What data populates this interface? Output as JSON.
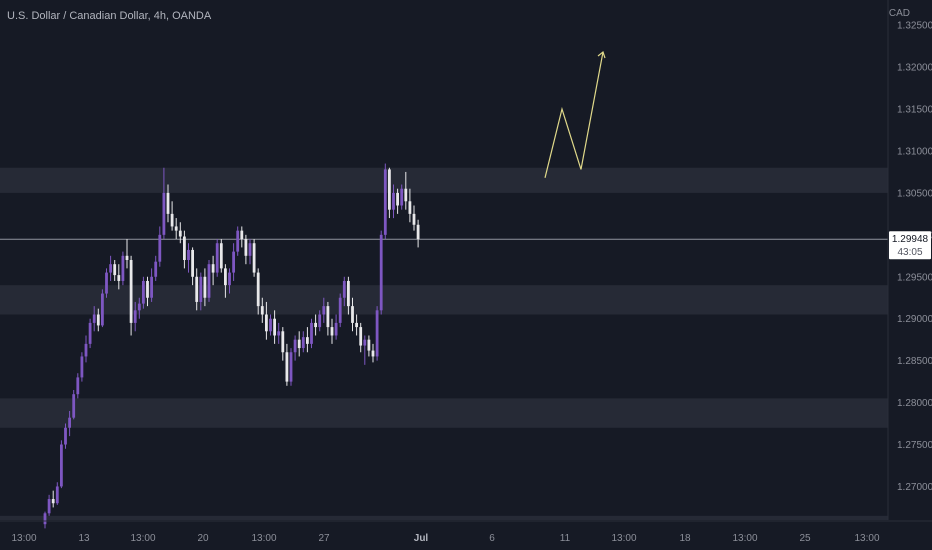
{
  "header": {
    "title": "U.S. Dollar / Canadian Dollar, 4h, OANDA",
    "currency": "CAD"
  },
  "price_label": {
    "price": "1.29948",
    "countdown": "43:05"
  },
  "colors": {
    "background": "#161a25",
    "bull": "#7e57c2",
    "bear": "#e8e8ea",
    "zone": "#262a36",
    "projection": "#e0d98a",
    "price_line": "#b0b3bd"
  },
  "chart_data": {
    "type": "candlestick",
    "title": "U.S. Dollar / Canadian Dollar, 4h, OANDA",
    "ylabel": "CAD",
    "ylim": [
      1.266,
      1.328
    ],
    "yticks": [
      "1.32500",
      "1.32000",
      "1.31500",
      "1.31000",
      "1.30500",
      "1.30000",
      "1.29500",
      "1.29000",
      "1.28500",
      "1.28000",
      "1.27500",
      "1.27000"
    ],
    "xtick_labels": [
      {
        "label": "13:00",
        "bold": false
      },
      {
        "label": "13",
        "bold": false
      },
      {
        "label": "13:00",
        "bold": false
      },
      {
        "label": "20",
        "bold": false
      },
      {
        "label": "13:00",
        "bold": false
      },
      {
        "label": "27",
        "bold": false
      },
      {
        "label": "Jul",
        "bold": true
      },
      {
        "label": "6",
        "bold": false
      },
      {
        "label": "11",
        "bold": false
      },
      {
        "label": "13:00",
        "bold": false
      },
      {
        "label": "18",
        "bold": false
      },
      {
        "label": "13:00",
        "bold": false
      },
      {
        "label": "25",
        "bold": false
      },
      {
        "label": "13:00",
        "bold": false
      }
    ],
    "current_price": 1.29948,
    "zones": [
      {
        "from": 1.305,
        "to": 1.308
      },
      {
        "from": 1.2905,
        "to": 1.294
      },
      {
        "from": 1.277,
        "to": 1.2805
      },
      {
        "from": 1.266,
        "to": 1.2665
      }
    ],
    "projection": [
      1.3068,
      1.315,
      1.3078,
      1.3218
    ],
    "candles": [
      [
        1.2655,
        1.267,
        1.265,
        1.2668
      ],
      [
        1.2668,
        1.269,
        1.2665,
        1.2685
      ],
      [
        1.2685,
        1.2695,
        1.2675,
        1.268
      ],
      [
        1.268,
        1.2705,
        1.2678,
        1.27
      ],
      [
        1.27,
        1.2755,
        1.2698,
        1.275
      ],
      [
        1.275,
        1.2775,
        1.2745,
        1.277
      ],
      [
        1.277,
        1.279,
        1.276,
        1.2782
      ],
      [
        1.2782,
        1.2815,
        1.278,
        1.281
      ],
      [
        1.281,
        1.2835,
        1.2805,
        1.283
      ],
      [
        1.283,
        1.286,
        1.2825,
        1.2855
      ],
      [
        1.2855,
        1.288,
        1.2848,
        1.287
      ],
      [
        1.287,
        1.29,
        1.2865,
        1.2895
      ],
      [
        1.2895,
        1.2915,
        1.2885,
        1.2905
      ],
      [
        1.2905,
        1.2912,
        1.2885,
        1.2892
      ],
      [
        1.2892,
        1.2935,
        1.289,
        1.293
      ],
      [
        1.293,
        1.296,
        1.2925,
        1.2955
      ],
      [
        1.2955,
        1.2975,
        1.2945,
        1.2965
      ],
      [
        1.2965,
        1.297,
        1.2945,
        1.2952
      ],
      [
        1.2952,
        1.2965,
        1.2935,
        1.2945
      ],
      [
        1.2945,
        1.298,
        1.294,
        1.2975
      ],
      [
        1.2975,
        1.2995,
        1.296,
        1.297
      ],
      [
        1.297,
        1.2975,
        1.288,
        1.2895
      ],
      [
        1.2895,
        1.292,
        1.2885,
        1.291
      ],
      [
        1.291,
        1.2925,
        1.29,
        1.2918
      ],
      [
        1.2918,
        1.295,
        1.2912,
        1.2945
      ],
      [
        1.2945,
        1.295,
        1.2915,
        1.2925
      ],
      [
        1.2925,
        1.296,
        1.292,
        1.295
      ],
      [
        1.295,
        1.2975,
        1.2945,
        1.2968
      ],
      [
        1.2968,
        1.301,
        1.2962,
        1.3
      ],
      [
        1.3,
        1.308,
        1.2995,
        1.305
      ],
      [
        1.305,
        1.306,
        1.3015,
        1.3025
      ],
      [
        1.3025,
        1.304,
        1.3005,
        1.301
      ],
      [
        1.301,
        1.302,
        1.2995,
        1.3005
      ],
      [
        1.3005,
        1.3015,
        1.299,
        1.2998
      ],
      [
        1.2998,
        1.3005,
        1.296,
        1.297
      ],
      [
        1.297,
        1.299,
        1.2955,
        1.2982
      ],
      [
        1.2982,
        1.2985,
        1.294,
        1.295
      ],
      [
        1.295,
        1.296,
        1.291,
        1.292
      ],
      [
        1.292,
        1.2955,
        1.291,
        1.295
      ],
      [
        1.295,
        1.296,
        1.2915,
        1.2925
      ],
      [
        1.2925,
        1.297,
        1.292,
        1.2965
      ],
      [
        1.2965,
        1.2975,
        1.294,
        1.2955
      ],
      [
        1.2955,
        1.2995,
        1.295,
        1.299
      ],
      [
        1.299,
        1.2995,
        1.2955,
        1.296
      ],
      [
        1.296,
        1.2965,
        1.2925,
        1.294
      ],
      [
        1.294,
        1.296,
        1.293,
        1.2955
      ],
      [
        1.2955,
        1.299,
        1.2945,
        1.298
      ],
      [
        1.298,
        1.301,
        1.2975,
        1.3005
      ],
      [
        1.3005,
        1.301,
        1.2985,
        1.2995
      ],
      [
        1.2995,
        1.3,
        1.2965,
        1.2975
      ],
      [
        1.2975,
        1.2995,
        1.2965,
        1.299
      ],
      [
        1.299,
        1.2995,
        1.295,
        1.2955
      ],
      [
        1.2955,
        1.296,
        1.2905,
        1.2915
      ],
      [
        1.2915,
        1.2925,
        1.2895,
        1.2905
      ],
      [
        1.2905,
        1.292,
        1.2875,
        1.2885
      ],
      [
        1.2885,
        1.2905,
        1.288,
        1.29
      ],
      [
        1.29,
        1.291,
        1.287,
        1.288
      ],
      [
        1.288,
        1.2895,
        1.287,
        1.2885
      ],
      [
        1.2885,
        1.289,
        1.285,
        1.286
      ],
      [
        1.286,
        1.287,
        1.282,
        1.2825
      ],
      [
        1.2825,
        1.2865,
        1.282,
        1.286
      ],
      [
        1.286,
        1.288,
        1.285,
        1.2875
      ],
      [
        1.2875,
        1.2885,
        1.2855,
        1.2865
      ],
      [
        1.2865,
        1.2885,
        1.286,
        1.2878
      ],
      [
        1.2878,
        1.289,
        1.286,
        1.287
      ],
      [
        1.287,
        1.29,
        1.2865,
        1.2895
      ],
      [
        1.2895,
        1.2905,
        1.288,
        1.289
      ],
      [
        1.289,
        1.291,
        1.2885,
        1.2905
      ],
      [
        1.2905,
        1.2925,
        1.2895,
        1.2915
      ],
      [
        1.2915,
        1.292,
        1.288,
        1.289
      ],
      [
        1.289,
        1.29,
        1.287,
        1.288
      ],
      [
        1.288,
        1.2905,
        1.2875,
        1.2895
      ],
      [
        1.2895,
        1.293,
        1.289,
        1.2925
      ],
      [
        1.2925,
        1.295,
        1.2915,
        1.2945
      ],
      [
        1.2945,
        1.295,
        1.2905,
        1.2915
      ],
      [
        1.2915,
        1.2925,
        1.2885,
        1.2895
      ],
      [
        1.2895,
        1.2905,
        1.288,
        1.289
      ],
      [
        1.289,
        1.2895,
        1.286,
        1.2868
      ],
      [
        1.2868,
        1.288,
        1.2845,
        1.2875
      ],
      [
        1.2875,
        1.288,
        1.2855,
        1.2862
      ],
      [
        1.2862,
        1.287,
        1.2848,
        1.2855
      ],
      [
        1.2855,
        1.2915,
        1.285,
        1.291
      ],
      [
        1.291,
        1.3005,
        1.2905,
        1.3
      ],
      [
        1.3,
        1.3085,
        1.2995,
        1.3078
      ],
      [
        1.3078,
        1.308,
        1.302,
        1.303
      ],
      [
        1.303,
        1.306,
        1.302,
        1.305
      ],
      [
        1.305,
        1.3055,
        1.3025,
        1.3035
      ],
      [
        1.3035,
        1.306,
        1.303,
        1.3055
      ],
      [
        1.3055,
        1.3075,
        1.303,
        1.304
      ],
      [
        1.304,
        1.3055,
        1.3015,
        1.3025
      ],
      [
        1.3025,
        1.3035,
        1.3005,
        1.3012
      ],
      [
        1.3012,
        1.3018,
        1.2985,
        1.2995
      ]
    ]
  }
}
